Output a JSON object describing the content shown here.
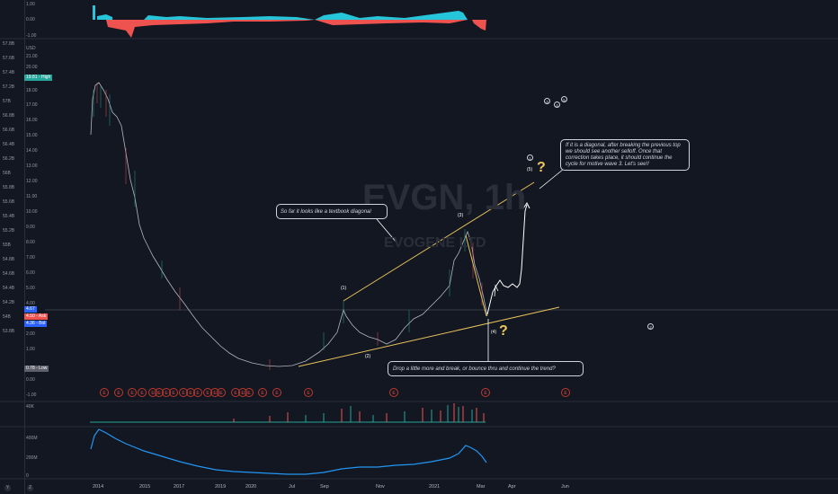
{
  "watermark": {
    "symbol_text": "EVGN, 1h",
    "name_text": "EVOGENE LTD"
  },
  "left_axis_ticks": [
    "57.8B",
    "57.6B",
    "57.4B",
    "57.2B",
    "57B",
    "56.8B",
    "56.6B",
    "56.4B",
    "56.2B",
    "56B",
    "55.8B",
    "55.6B",
    "55.4B",
    "55.2B",
    "55B",
    "54.8B",
    "54.6B",
    "54.4B",
    "54.2B",
    "54B",
    "53.8B"
  ],
  "oscillator_ticks": [
    "1.00",
    "0.00",
    "-1.00"
  ],
  "price_axis": {
    "currency": "USD",
    "ticks": [
      "21.00",
      "20.00",
      "19.00",
      "18.00",
      "17.00",
      "16.00",
      "15.00",
      "14.00",
      "13.00",
      "12.00",
      "11.00",
      "10.00",
      "9.00",
      "8.00",
      "7.00",
      "6.00",
      "5.00",
      "4.00",
      "3.00",
      "2.00",
      "1.00",
      "0.00",
      "-1.00"
    ],
    "high_tag": "19.81 - High",
    "last_tag": "4.67",
    "ask_tag": "4.50 - Ask",
    "bid_tag": "4.36 - Bid",
    "low_tag": "0.78 - Low",
    "colors": {
      "high": "#26a69a",
      "last": "#2962ff",
      "ask": "#ef5350",
      "bid": "#2962ff",
      "low": "#5d606b"
    }
  },
  "volume_axis": {
    "label": "40K"
  },
  "dollar_volume_axis": {
    "ticks": [
      "400M",
      "200M",
      "0"
    ]
  },
  "x_axis": [
    "2014",
    "2015",
    "2017",
    "2019",
    "2020",
    "Jul",
    "Sep",
    "Nov",
    "2021",
    "Mar",
    "Apr",
    "Jun"
  ],
  "annotations": {
    "diagonal_note": "So far it looks like a textbook diagonal",
    "diagonal_plan_note": "If it is a diagonal, after breaking the previous top we should see another selloff. Once that correction takes place, it should continue the cycle for motive wave 3. Let's see!!",
    "drop_note": "Drop a little more and break, or bounce thru and continue the trend?",
    "question_mark": "?"
  },
  "wave_labels": {
    "w1": "(1)",
    "w2": "(2)",
    "w3": "(3)",
    "w4": "(4)",
    "w5": "(5)",
    "circle_1": "1",
    "circle_2": "2",
    "circle_3": "3",
    "circle_4": "4",
    "circle_5": "5"
  },
  "earnings_marker_label": "E",
  "bottom_icons": [
    "Y",
    "Z"
  ]
}
